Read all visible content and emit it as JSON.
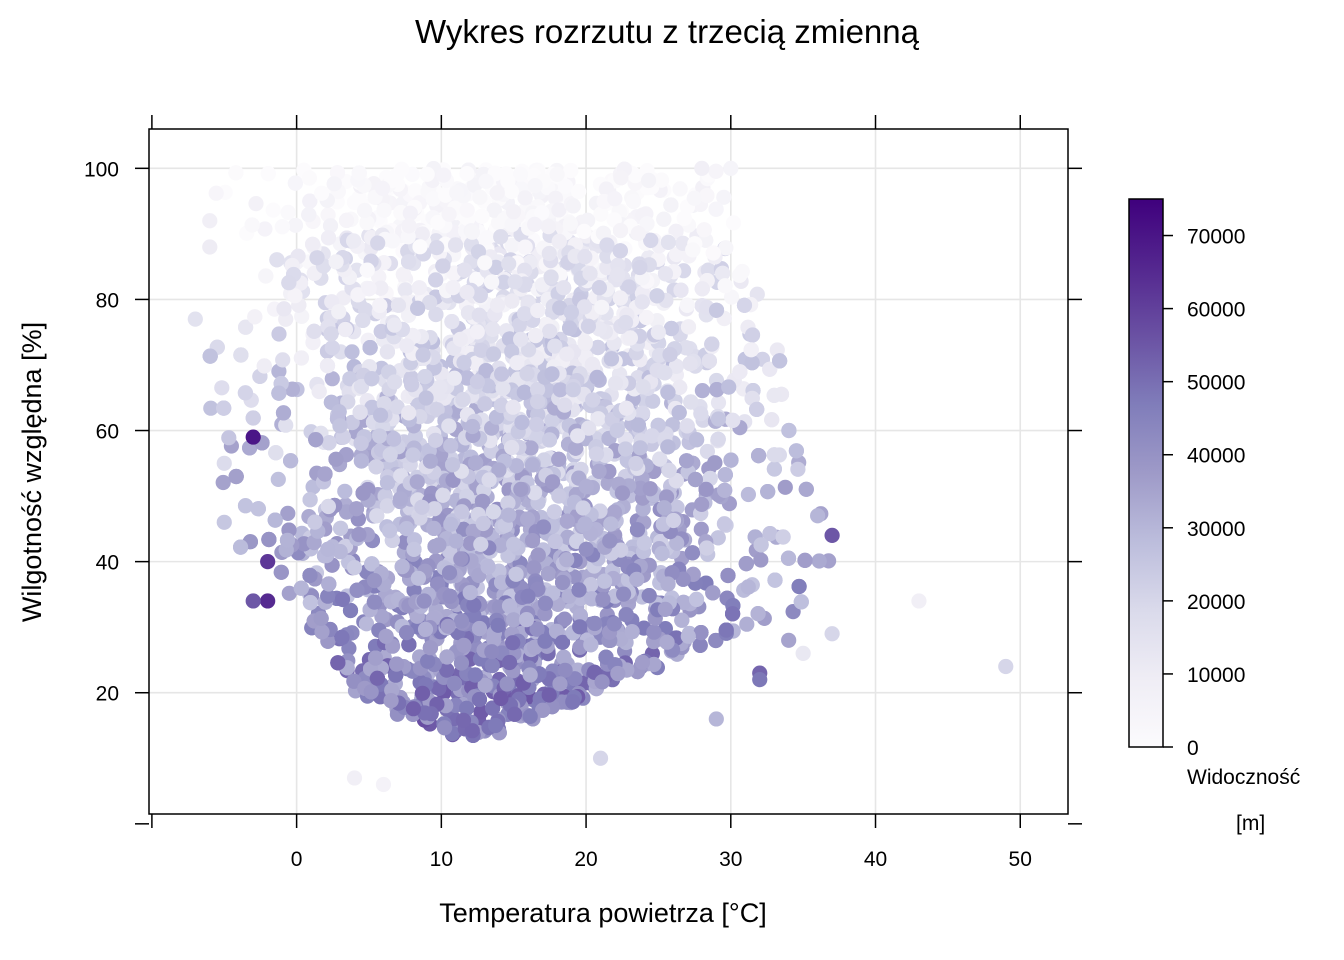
{
  "chart_data": {
    "type": "scatter",
    "title": "Wykres rozrzutu z trzecią zmienną",
    "xlabel": "Temperatura powietrza [°C]",
    "ylabel": "Wilgotność względna [%]",
    "xlim": [
      -10.2,
      53.3
    ],
    "ylim": [
      1.5,
      106
    ],
    "x_ticks": [
      0,
      10,
      20,
      30,
      40,
      50
    ],
    "y_ticks": [
      20,
      40,
      60,
      80,
      100
    ],
    "x_tick_labels": [
      "0",
      "10",
      "20",
      "30",
      "40",
      "50"
    ],
    "y_tick_labels": [
      "20",
      "40",
      "60",
      "80",
      "100"
    ],
    "grid": true,
    "colorbar": {
      "title_line1": "Widoczność",
      "title_line2": "[m]",
      "min": 0,
      "max": 75000,
      "ticks": [
        0,
        10000,
        20000,
        30000,
        40000,
        50000,
        60000,
        70000
      ],
      "tick_labels": [
        "0",
        "10000",
        "20000",
        "30000",
        "40000",
        "50000",
        "60000",
        "70000"
      ],
      "colors": [
        "#fcfbfd",
        "#efedf5",
        "#dadaeb",
        "#bcbddc",
        "#9e9ac8",
        "#807dba",
        "#6a51a3",
        "#54278f",
        "#3f007d"
      ]
    },
    "points": [
      {
        "x": -3,
        "y": 59,
        "c": 70000
      },
      {
        "x": -2,
        "y": 40,
        "c": 62000
      },
      {
        "x": -2,
        "y": 34,
        "c": 65000
      },
      {
        "x": -3,
        "y": 34,
        "c": 55000
      },
      {
        "x": 49,
        "y": 24,
        "c": 20000
      },
      {
        "x": 43,
        "y": 34,
        "c": 8000
      },
      {
        "x": 32,
        "y": 23,
        "c": 52000
      },
      {
        "x": 32,
        "y": 22,
        "c": 48000
      },
      {
        "x": 37,
        "y": 44,
        "c": 55000
      },
      {
        "x": 37,
        "y": 29,
        "c": 20000
      },
      {
        "x": 36,
        "y": 47,
        "c": 30000
      },
      {
        "x": 35,
        "y": 26,
        "c": 12000
      },
      {
        "x": 34,
        "y": 28,
        "c": 35000
      },
      {
        "x": -7,
        "y": 77,
        "c": 15000
      },
      {
        "x": -6,
        "y": 92,
        "c": 8000
      },
      {
        "x": -6,
        "y": 88,
        "c": 10000
      },
      {
        "x": -5,
        "y": 46,
        "c": 25000
      },
      {
        "x": -5,
        "y": 55,
        "c": 18000
      },
      {
        "x": 4,
        "y": 7,
        "c": 8000
      },
      {
        "x": 6,
        "y": 6,
        "c": 6000
      },
      {
        "x": 21,
        "y": 10,
        "c": 20000
      },
      {
        "x": 29,
        "y": 16,
        "c": 30000
      },
      {
        "x": 30,
        "y": 100,
        "c": 5000
      },
      {
        "x": 28,
        "y": 100,
        "c": 8000
      }
    ]
  }
}
